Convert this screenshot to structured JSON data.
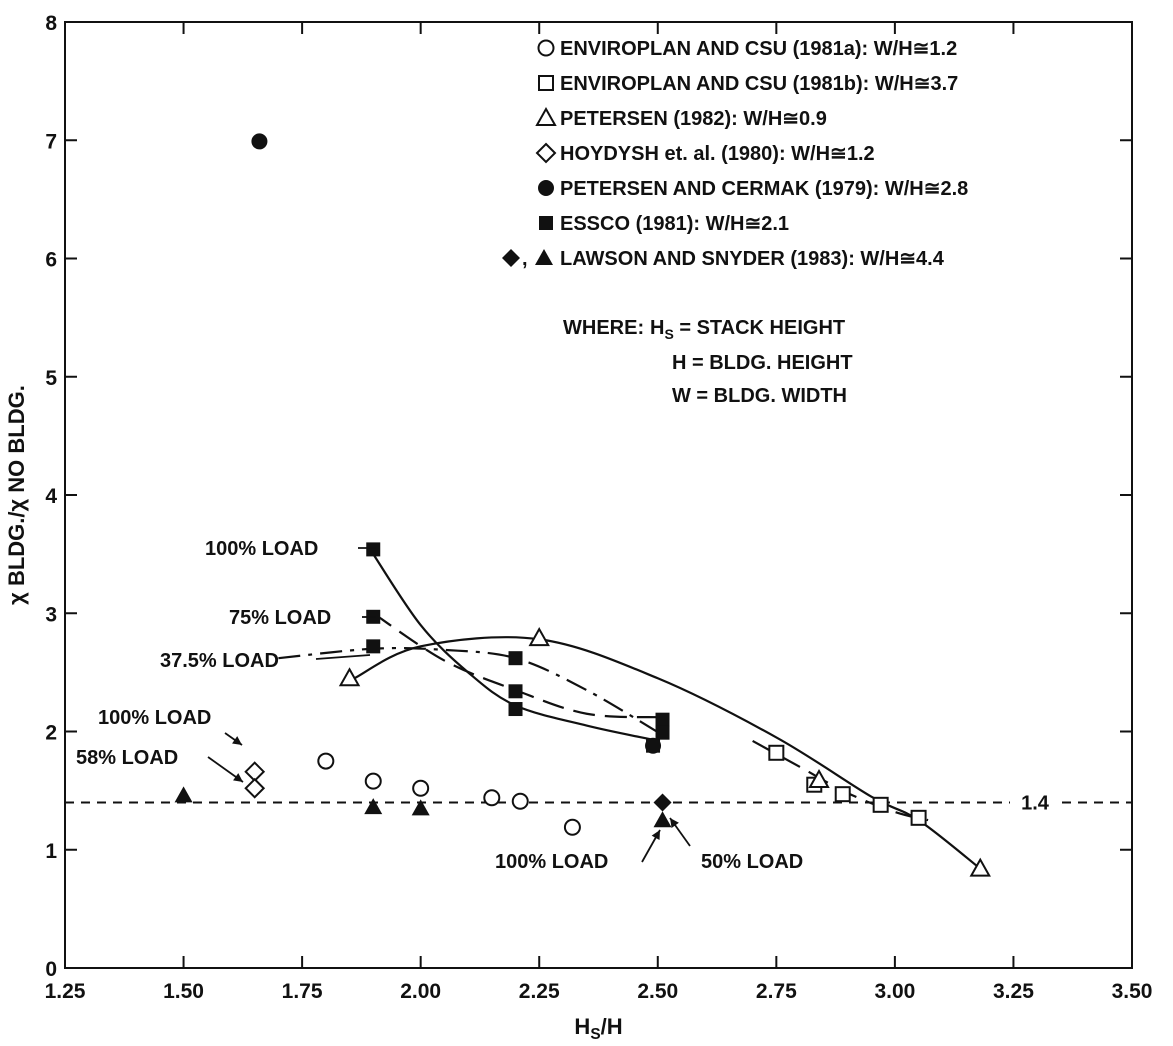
{
  "chart_data": {
    "type": "scatter",
    "xlabel": "H_S/H",
    "ylabel": "χ BLDG./χ NO BLDG.",
    "xlim": [
      1.25,
      3.5
    ],
    "ylim": [
      0,
      8
    ],
    "x_ticks": [
      "1.25",
      "1.50",
      "1.75",
      "2.00",
      "2.25",
      "2.50",
      "2.75",
      "3.00",
      "3.25",
      "3.50"
    ],
    "y_ticks": [
      "0",
      "1",
      "2",
      "3",
      "4",
      "5",
      "6",
      "7",
      "8"
    ],
    "grid": false,
    "legend_position": "top-right",
    "reference_line": {
      "y": 1.4,
      "label": "1.4",
      "style": "dashed"
    },
    "series": [
      {
        "name": "ENVIROPLAN AND CSU (1981a): W/H≅1.2",
        "marker": "open-circle",
        "points": [
          [
            1.8,
            1.75
          ],
          [
            1.9,
            1.58
          ],
          [
            2.0,
            1.52
          ],
          [
            2.15,
            1.44
          ],
          [
            2.21,
            1.41
          ],
          [
            2.32,
            1.19
          ]
        ]
      },
      {
        "name": "ENVIROPLAN AND CSU (1981b): W/H≅3.7",
        "marker": "open-square",
        "points": [
          [
            2.75,
            1.82
          ],
          [
            2.83,
            1.55
          ],
          [
            2.89,
            1.47
          ],
          [
            2.97,
            1.38
          ],
          [
            3.05,
            1.27
          ]
        ]
      },
      {
        "name": "PETERSEN (1982): W/H≅0.9",
        "marker": "open-triangle",
        "points": [
          [
            1.85,
            2.45
          ],
          [
            2.25,
            2.79
          ],
          [
            2.84,
            1.59
          ],
          [
            3.18,
            0.84
          ]
        ]
      },
      {
        "name": "HOYDYSH et. al. (1980): W/H≅1.2",
        "marker": "open-diamond",
        "points": [
          [
            1.65,
            1.66
          ],
          [
            1.65,
            1.52
          ]
        ]
      },
      {
        "name": "PETERSEN AND CERMAK (1979): W/H≅2.8",
        "marker": "filled-circle",
        "points": [
          [
            1.66,
            6.99
          ],
          [
            2.49,
            1.88
          ]
        ]
      },
      {
        "name": "ESSCO (1981): W/H≅2.1",
        "marker": "filled-square",
        "points": [
          [
            1.9,
            3.54
          ],
          [
            1.9,
            2.97
          ],
          [
            1.9,
            2.72
          ],
          [
            2.2,
            2.62
          ],
          [
            2.2,
            2.34
          ],
          [
            2.2,
            2.19
          ],
          [
            2.49,
            1.88
          ],
          [
            2.51,
            2.1
          ],
          [
            2.51,
            1.99
          ]
        ]
      },
      {
        "name": "LAWSON AND SNYDER (1983): W/H≅4.4",
        "marker": "filled-diamond",
        "points": [
          [
            2.51,
            1.4
          ]
        ]
      },
      {
        "name": "LAWSON AND SNYDER (1983): W/H≅4.4",
        "marker": "filled-triangle",
        "points": [
          [
            1.5,
            1.46
          ],
          [
            1.9,
            1.36
          ],
          [
            2.0,
            1.35
          ],
          [
            2.51,
            1.25
          ]
        ]
      }
    ],
    "curves": [
      {
        "style": "solid",
        "points": [
          [
            1.9,
            3.5
          ],
          [
            2.0,
            2.9
          ],
          [
            2.1,
            2.5
          ],
          [
            2.2,
            2.22
          ],
          [
            2.35,
            2.05
          ],
          [
            2.49,
            1.93
          ]
        ]
      },
      {
        "style": "long-dash",
        "points": [
          [
            1.9,
            3.0
          ],
          [
            2.05,
            2.6
          ],
          [
            2.2,
            2.35
          ],
          [
            2.35,
            2.15
          ],
          [
            2.51,
            2.12
          ]
        ]
      },
      {
        "style": "dash-dot",
        "points": [
          [
            1.7,
            2.62
          ],
          [
            1.9,
            2.7
          ],
          [
            2.05,
            2.69
          ],
          [
            2.2,
            2.62
          ],
          [
            2.35,
            2.35
          ],
          [
            2.51,
            1.97
          ]
        ]
      },
      {
        "style": "solid",
        "points": [
          [
            1.86,
            2.45
          ],
          [
            2.0,
            2.72
          ],
          [
            2.25,
            2.78
          ],
          [
            2.5,
            2.45
          ],
          [
            2.75,
            1.95
          ],
          [
            2.95,
            1.45
          ],
          [
            3.05,
            1.25
          ],
          [
            3.18,
            0.84
          ]
        ]
      },
      {
        "style": "long-dash",
        "points": [
          [
            2.7,
            1.92
          ],
          [
            2.8,
            1.7
          ],
          [
            2.9,
            1.48
          ],
          [
            3.0,
            1.32
          ],
          [
            3.07,
            1.25
          ]
        ]
      }
    ],
    "annotations": [
      {
        "text": "100% LOAD",
        "target": [
          1.9,
          3.54
        ]
      },
      {
        "text": "75% LOAD",
        "target": [
          1.9,
          2.97
        ]
      },
      {
        "text": "37.5% LOAD",
        "target": [
          1.9,
          2.72
        ]
      },
      {
        "text": "100% LOAD",
        "target": [
          1.65,
          1.66
        ]
      },
      {
        "text": "58% LOAD",
        "target": [
          1.65,
          1.52
        ]
      },
      {
        "text": "100% LOAD",
        "target": [
          2.51,
          1.25
        ]
      },
      {
        "text": "50% LOAD",
        "target": [
          2.51,
          1.4
        ]
      }
    ],
    "notes": [
      "WHERE:",
      "H_S = STACK HEIGHT",
      "H = BLDG. HEIGHT",
      "W = BLDG. WIDTH"
    ]
  }
}
